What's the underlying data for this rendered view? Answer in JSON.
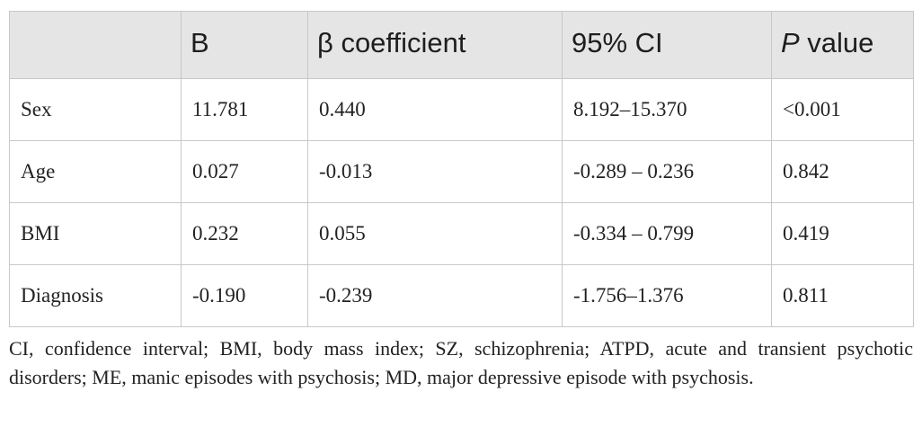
{
  "table": {
    "headers": {
      "label": "",
      "b": "B",
      "beta": "β coefficient",
      "ci": "95% CI",
      "p_italic": "P",
      "p_rest": " value"
    },
    "rows": [
      {
        "label": "Sex",
        "b": "11.781",
        "beta": "0.440",
        "ci": "8.192–15.370",
        "p": "<0.001"
      },
      {
        "label": "Age",
        "b": "0.027",
        "beta": "-0.013",
        "ci": "-0.289 – 0.236",
        "p": "0.842"
      },
      {
        "label": "BMI",
        "b": "0.232",
        "beta": "0.055",
        "ci": "-0.334 – 0.799",
        "p": "0.419"
      },
      {
        "label": "Diagnosis",
        "b": "-0.190",
        "beta": "-0.239",
        "ci": "-1.756–1.376",
        "p": "0.811"
      }
    ]
  },
  "footnote": "CI, confidence interval; BMI, body mass index; SZ, schizophrenia; ATPD, acute and transient psychotic disorders; ME, manic episodes with psychosis; MD, major depressive episode with psychosis.",
  "colors": {
    "header_bg": "#e5e5e5",
    "border": "#c8c8c8",
    "text": "#222222"
  }
}
